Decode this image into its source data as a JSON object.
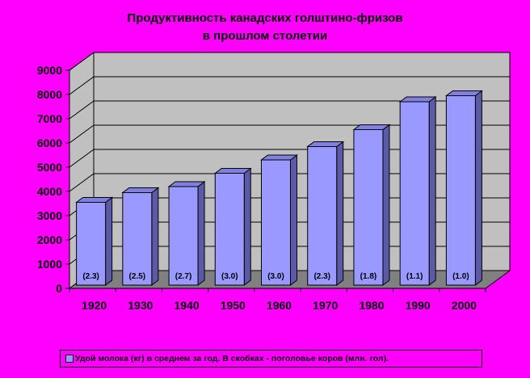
{
  "chart_data": {
    "type": "bar",
    "title_lines": [
      "Продуктивность канадских голштино-фризов",
      "в прошлом столетии"
    ],
    "categories": [
      "1920",
      "1930",
      "1940",
      "1950",
      "1960",
      "1970",
      "1980",
      "1990",
      "2000"
    ],
    "series": [
      {
        "name": "Удой молока (кг) в среднем за год.  В скобках - поголовье коров (млн. гол).",
        "values": [
          3550,
          3950,
          4200,
          4750,
          5300,
          5850,
          6550,
          7700,
          7950
        ]
      }
    ],
    "bar_labels": [
      "(2.3)",
      "(2.5)",
      "(2.7)",
      "(3.0)",
      "(3.0)",
      "(2.3)",
      "(1.8)",
      "(1.1)",
      "(1.0)"
    ],
    "ylim": [
      0,
      9000
    ],
    "yticks": [
      "0",
      "1000",
      "2000",
      "3000",
      "4000",
      "5000",
      "6000",
      "7000",
      "8000",
      "9000"
    ],
    "grid": true,
    "legend_position": "bottom",
    "colors": {
      "background": "#ff00ff",
      "wall": "#c0c0c0",
      "floor": "#808080",
      "bar_front": "#9999ff",
      "bar_top": "#8080e0",
      "bar_side": "#5a5aa8"
    }
  }
}
